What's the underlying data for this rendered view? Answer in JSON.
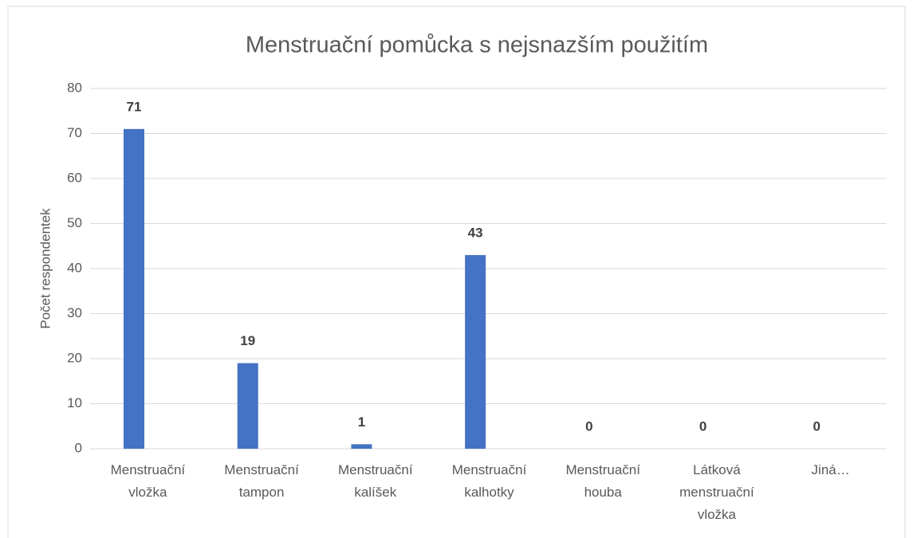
{
  "chart_data": {
    "type": "bar",
    "title": "Menstruační pomůcka s nejsnazším použitím",
    "y_label": "Počet respondentek",
    "categories": [
      "Menstruační vložka",
      "Menstruační tampon",
      "Menstruační kalíšek",
      "Menstruační kalhotky",
      "Menstruační houba",
      "Látková menstruační vložka",
      "Jiná…"
    ],
    "values": [
      71,
      19,
      1,
      43,
      0,
      0,
      0
    ],
    "color": "#4472c4",
    "ylim": [
      0,
      80
    ],
    "yticks": [
      0,
      10,
      20,
      30,
      40,
      50,
      60,
      70,
      80
    ],
    "grid": true
  }
}
